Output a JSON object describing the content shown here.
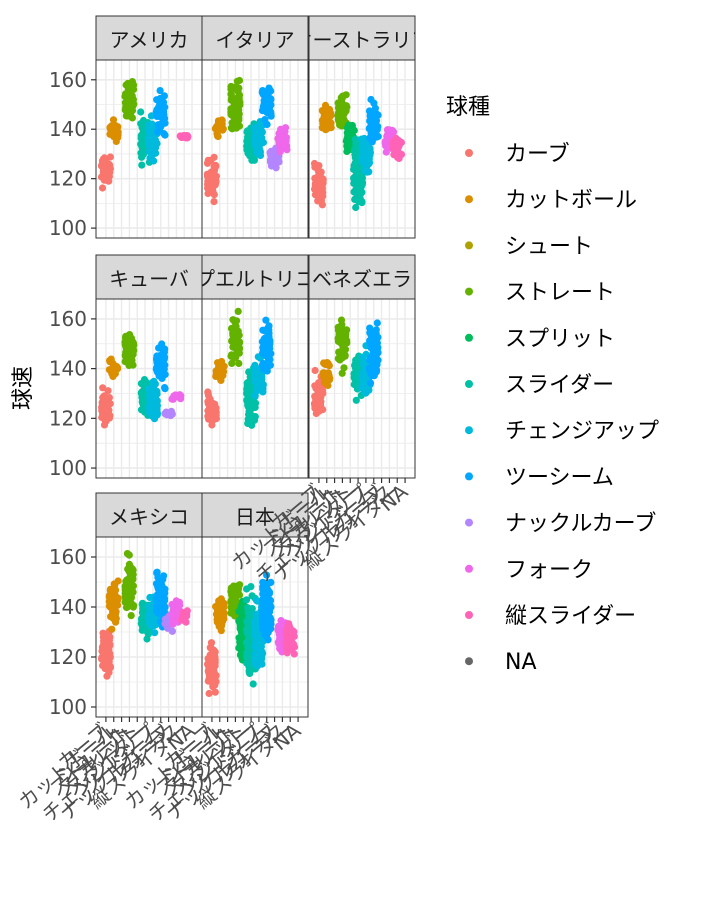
{
  "chart_data": {
    "type": "scatter",
    "ylabel": "球速",
    "xlabel": "",
    "ylim": [
      96,
      168
    ],
    "yticks": [
      100,
      120,
      140,
      160
    ],
    "grid": true,
    "legend": {
      "title": "球種",
      "position": "right",
      "entries": [
        {
          "label": "カーブ",
          "color": "#F8766D"
        },
        {
          "label": "カットボール",
          "color": "#DB8E00"
        },
        {
          "label": "シュート",
          "color": "#AEA200"
        },
        {
          "label": "ストレート",
          "color": "#64B200"
        },
        {
          "label": "スプリット",
          "color": "#00BD5C"
        },
        {
          "label": "スライダー",
          "color": "#00C1A7"
        },
        {
          "label": "チェンジアップ",
          "color": "#00BADE"
        },
        {
          "label": "ツーシーム",
          "color": "#00A6FF"
        },
        {
          "label": "ナックルカーブ",
          "color": "#B385FF"
        },
        {
          "label": "フォーク",
          "color": "#EF67EB"
        },
        {
          "label": "縦スライダー",
          "color": "#FF63B6"
        },
        {
          "label": "NA",
          "color": "#666666"
        }
      ]
    },
    "categories": [
      "カーブ",
      "カットボール",
      "シュート",
      "ストレート",
      "スプリット",
      "スライダー",
      "チェンジアップ",
      "ツーシーム",
      "ナックルカーブ",
      "フォーク",
      "縦スライダー",
      "NA"
    ],
    "panels": [
      {
        "label": "アメリカ",
        "series": [
          {
            "cat": 0,
            "min": 114,
            "max": 133
          },
          {
            "cat": 1,
            "min": 133,
            "max": 146
          },
          {
            "cat": 3,
            "min": 141,
            "max": 163
          },
          {
            "cat": 5,
            "min": 122,
            "max": 148
          },
          {
            "cat": 6,
            "min": 126,
            "max": 148
          },
          {
            "cat": 7,
            "min": 135,
            "max": 157
          },
          {
            "cat": 10,
            "min": 136,
            "max": 138
          }
        ]
      },
      {
        "label": "イタリア",
        "series": [
          {
            "cat": 0,
            "min": 109,
            "max": 131
          },
          {
            "cat": 1,
            "min": 134,
            "max": 146
          },
          {
            "cat": 3,
            "min": 136,
            "max": 164
          },
          {
            "cat": 5,
            "min": 123,
            "max": 146
          },
          {
            "cat": 6,
            "min": 126,
            "max": 148
          },
          {
            "cat": 7,
            "min": 140,
            "max": 160
          },
          {
            "cat": 8,
            "min": 122,
            "max": 134
          },
          {
            "cat": 9,
            "min": 126,
            "max": 143
          }
        ]
      },
      {
        "label": "オーストラリア",
        "series": [
          {
            "cat": 0,
            "min": 105,
            "max": 128
          },
          {
            "cat": 1,
            "min": 136,
            "max": 152
          },
          {
            "cat": 3,
            "min": 137,
            "max": 157
          },
          {
            "cat": 4,
            "min": 128,
            "max": 145
          },
          {
            "cat": 5,
            "min": 103,
            "max": 142
          },
          {
            "cat": 6,
            "min": 118,
            "max": 142
          },
          {
            "cat": 7,
            "min": 133,
            "max": 154
          },
          {
            "cat": 9,
            "min": 129,
            "max": 142
          },
          {
            "cat": 10,
            "min": 126,
            "max": 140
          }
        ]
      },
      {
        "label": "キューバ",
        "series": [
          {
            "cat": 0,
            "min": 114,
            "max": 134
          },
          {
            "cat": 1,
            "min": 135,
            "max": 146
          },
          {
            "cat": 3,
            "min": 135,
            "max": 159
          },
          {
            "cat": 5,
            "min": 118,
            "max": 140
          },
          {
            "cat": 6,
            "min": 115,
            "max": 139
          },
          {
            "cat": 7,
            "min": 130,
            "max": 154
          },
          {
            "cat": 8,
            "min": 121,
            "max": 123
          },
          {
            "cat": 9,
            "min": 126,
            "max": 131
          }
        ]
      },
      {
        "label": "プエルトリコ",
        "series": [
          {
            "cat": 0,
            "min": 114,
            "max": 134
          },
          {
            "cat": 1,
            "min": 134,
            "max": 145
          },
          {
            "cat": 3,
            "min": 139,
            "max": 164
          },
          {
            "cat": 5,
            "min": 114,
            "max": 144
          },
          {
            "cat": 6,
            "min": 124,
            "max": 148
          },
          {
            "cat": 7,
            "min": 134,
            "max": 163
          }
        ]
      },
      {
        "label": "ベネズエラ",
        "series": [
          {
            "cat": 0,
            "min": 118,
            "max": 141
          },
          {
            "cat": 1,
            "min": 131,
            "max": 146
          },
          {
            "cat": 3,
            "min": 137,
            "max": 163
          },
          {
            "cat": 5,
            "min": 125,
            "max": 150
          },
          {
            "cat": 6,
            "min": 122,
            "max": 150
          },
          {
            "cat": 7,
            "min": 130,
            "max": 161
          }
        ]
      },
      {
        "label": "メキシコ",
        "series": [
          {
            "cat": 0,
            "min": 108,
            "max": 136
          },
          {
            "cat": 1,
            "min": 130,
            "max": 153
          },
          {
            "cat": 3,
            "min": 134,
            "max": 164
          },
          {
            "cat": 5,
            "min": 124,
            "max": 148
          },
          {
            "cat": 6,
            "min": 126,
            "max": 146
          },
          {
            "cat": 7,
            "min": 130,
            "max": 159
          },
          {
            "cat": 8,
            "min": 128,
            "max": 138
          },
          {
            "cat": 9,
            "min": 131,
            "max": 145
          },
          {
            "cat": 10,
            "min": 133,
            "max": 139
          }
        ]
      },
      {
        "label": "日本",
        "series": [
          {
            "cat": 0,
            "min": 99,
            "max": 132
          },
          {
            "cat": 1,
            "min": 128,
            "max": 148
          },
          {
            "cat": 3,
            "min": 132,
            "max": 155
          },
          {
            "cat": 4,
            "min": 112,
            "max": 148
          },
          {
            "cat": 5,
            "min": 104,
            "max": 150
          },
          {
            "cat": 6,
            "min": 108,
            "max": 150
          },
          {
            "cat": 7,
            "min": 121,
            "max": 158
          },
          {
            "cat": 9,
            "min": 119,
            "max": 138
          },
          {
            "cat": 10,
            "min": 118,
            "max": 136
          }
        ]
      }
    ]
  }
}
